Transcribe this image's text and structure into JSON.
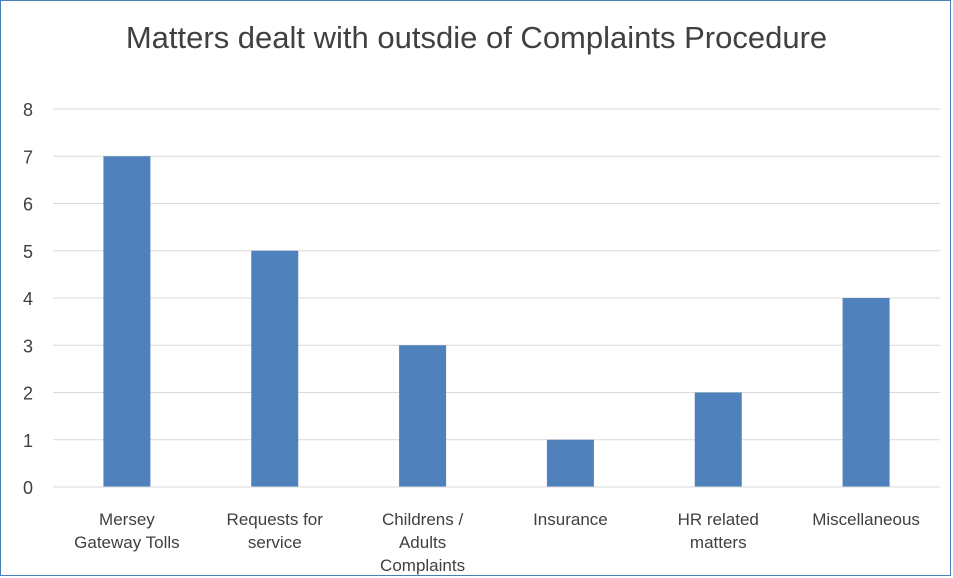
{
  "chart_data": {
    "type": "bar",
    "title": "Matters dealt with outsdie of Complaints Procedure",
    "categories": [
      [
        "Mersey",
        "Gateway Tolls"
      ],
      [
        "Requests for",
        "service"
      ],
      [
        "Childrens /",
        "Adults",
        "Complaints"
      ],
      [
        "Insurance"
      ],
      [
        "HR related",
        "matters"
      ],
      [
        "Miscellaneous"
      ]
    ],
    "values": [
      7,
      5,
      3,
      1,
      2,
      4
    ],
    "ylim": [
      0,
      8
    ],
    "yticks": [
      0,
      1,
      2,
      3,
      4,
      5,
      6,
      7,
      8
    ],
    "grid": true,
    "bar_color": "#4f81bd",
    "grid_color": "#d9d9d9",
    "xlabel": "",
    "ylabel": ""
  }
}
